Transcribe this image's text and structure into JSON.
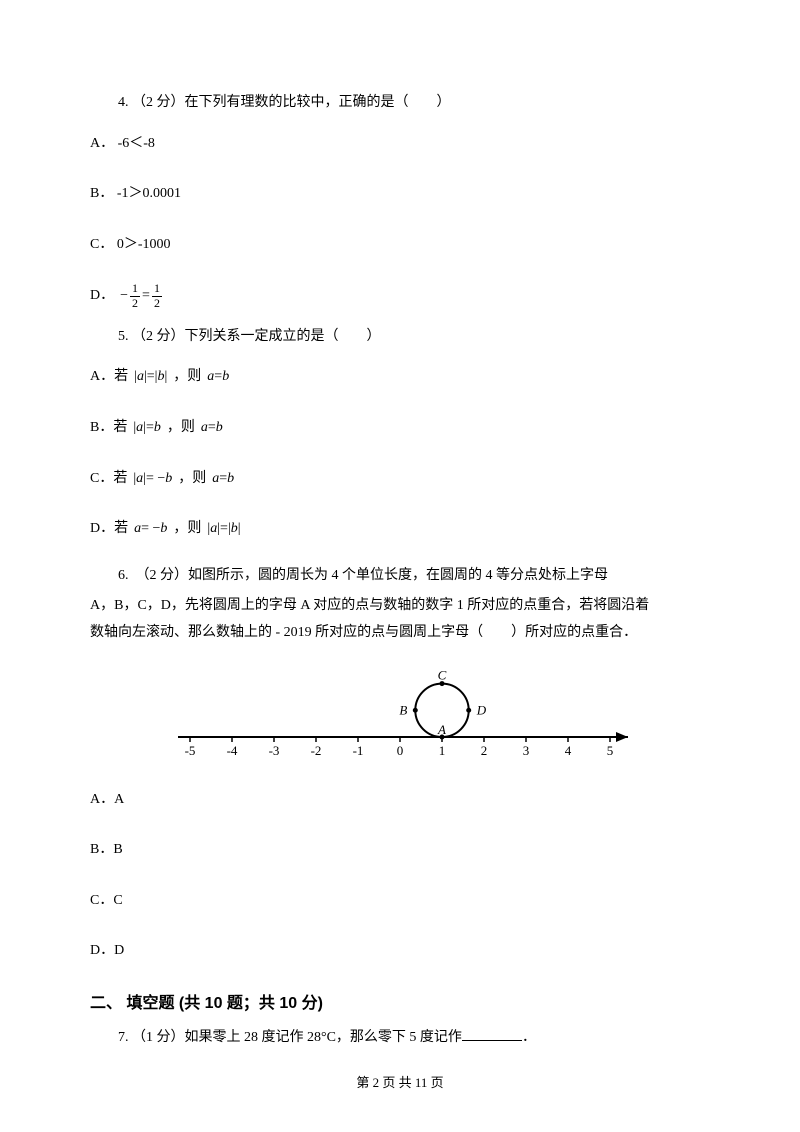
{
  "q4": {
    "stem": "4. （2 分）在下列有理数的比较中，正确的是（　　）",
    "A_pre": "A． -6＜-8",
    "B_pre": "B． -1＞0.0001",
    "C_pre": "C． 0＞-1000",
    "D_pre": "D．",
    "D_frac1_neg": "−",
    "D_frac1_num": "1",
    "D_frac1_den": "2",
    "D_eq": "=",
    "D_frac2_num": "1",
    "D_frac2_den": "2"
  },
  "q5": {
    "stem": "5. （2 分）下列关系一定成立的是（　　）",
    "A_pre": "A．若 ",
    "A_expr1_l": "|",
    "A_expr1_a": "a",
    "A_expr1_r": "|",
    "A_expr1_eq": "=",
    "A_expr1_l2": "|",
    "A_expr1_b": "b",
    "A_expr1_r2": "|",
    "A_mid": " ，则 ",
    "A_expr2_a": "a",
    "A_expr2_eq": "=",
    "A_expr2_b": "b",
    "B_pre": "B．若 ",
    "B_expr1_l": "|",
    "B_expr1_a": "a",
    "B_expr1_r": "|",
    "B_expr1_eq": "=",
    "B_expr1_b": "b",
    "B_mid": " ，则 ",
    "B_expr2_a": "a",
    "B_expr2_eq": "=",
    "B_expr2_b": "b",
    "C_pre": "C．若 ",
    "C_expr1_l": "|",
    "C_expr1_a": "a",
    "C_expr1_r": "|",
    "C_expr1_eq": "= −",
    "C_expr1_b": "b",
    "C_mid": " ，则 ",
    "C_expr2_a": "a",
    "C_expr2_eq": "=",
    "C_expr2_b": "b",
    "D_pre": "D．若 ",
    "D_expr1_a": "a",
    "D_expr1_eq": "= −",
    "D_expr1_b": "b",
    "D_mid": " ，则 ",
    "D_expr2_l": "|",
    "D_expr2_a": "a",
    "D_expr2_r": "|",
    "D_expr2_eq": "=",
    "D_expr2_l2": "|",
    "D_expr2_b": "b",
    "D_expr2_r2": "|"
  },
  "q6": {
    "stem_prefix": "6.　（2 分）如图所示，圆的周长为 4 个单位长度，在圆周的 4 等分点处标上字母",
    "stem_line2": "A，B，C，D，先将圆周上的字母 A 对应的点与数轴的数字 1 所对应的点重合，若将圆沿着",
    "stem_line3": "数轴向左滚动、那么数轴上的 - 2019 所对应的点与圆周上字母（　　）所对应的点重合．",
    "A": "A．A",
    "B": "B．B",
    "C": "C．C",
    "D": "D．D",
    "diagram": {
      "axis_color": "#000000",
      "x_min": -5,
      "x_max": 5,
      "ticks": [
        -5,
        -4,
        -3,
        -2,
        -1,
        0,
        1,
        2,
        3,
        4,
        5
      ],
      "tick_labels": [
        "-5",
        "-4",
        "-3",
        "-2",
        "-1",
        "0",
        "1",
        "2",
        "3",
        "4",
        "5"
      ],
      "circle_center_on_axis_x": 1,
      "circle_radius_units": 0.636,
      "point_labels": {
        "top": "C",
        "right": "D",
        "bottom": "A",
        "left": "B"
      },
      "line_width": 2,
      "tick_fontsize": 13,
      "label_fontsize": 13
    }
  },
  "section2": {
    "header": "二、 填空题 (共 10 题；共 10 分)"
  },
  "q7": {
    "stem_pre": "7. （1 分）如果零上 28 度记作 28°C，那么零下 5 度记作",
    "stem_post": "．"
  },
  "footer": "第 2 页 共 11 页"
}
